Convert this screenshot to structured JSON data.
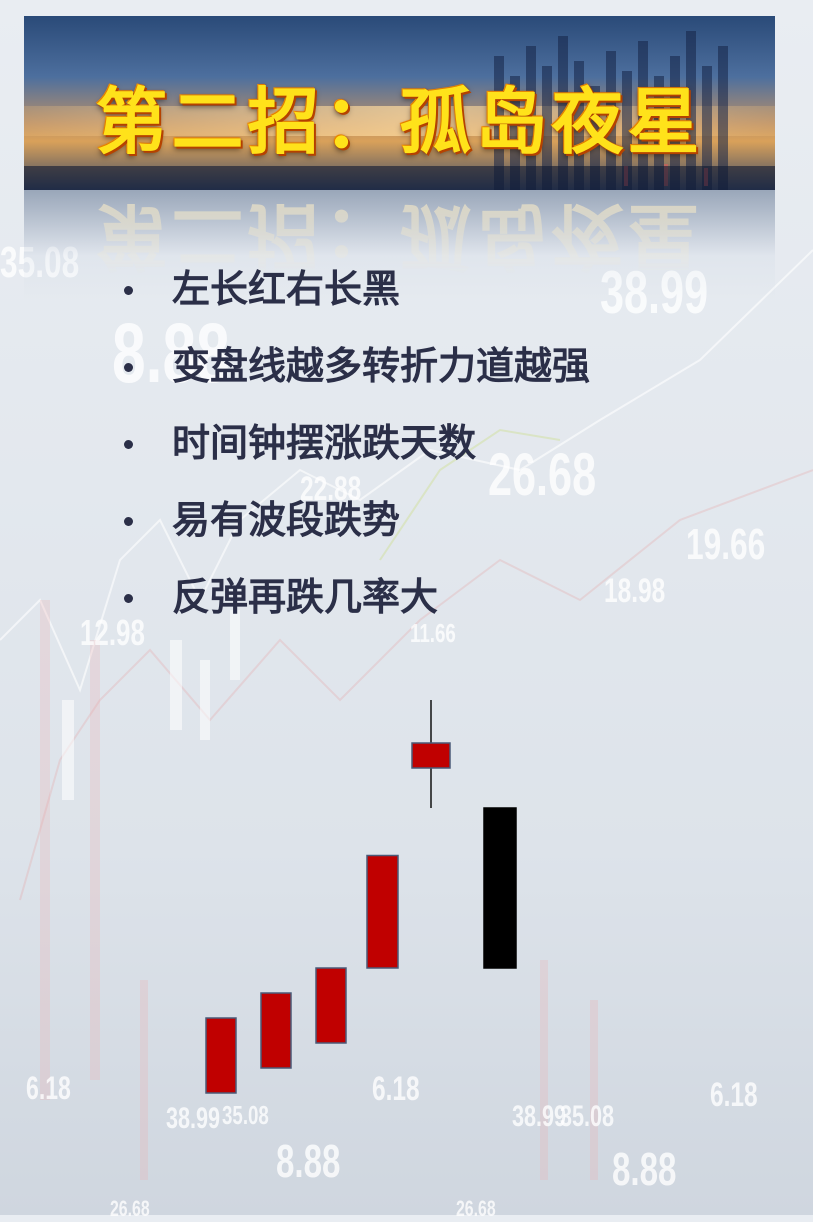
{
  "banner": {
    "title": "第二招：孤岛夜星"
  },
  "bullets": [
    "左长红右长黑",
    "变盘线越多转折力道越强",
    "时间钟摆涨跌天数",
    "易有波段跌势",
    "反弹再跌几率大"
  ],
  "background_numbers": [
    "35.08",
    "8.88",
    "26.68",
    "22.88",
    "38.99",
    "19.66",
    "18.98",
    "12.98",
    "11.66",
    "6.18",
    "38.99",
    "35.08",
    "8.88",
    "6.18",
    "38.99",
    "35.08",
    "8.88",
    "6.18",
    "26.68",
    "26.68"
  ],
  "candlestick_pattern": {
    "candles": [
      {
        "color": "red",
        "open": 1,
        "close": 4
      },
      {
        "color": "red",
        "open": 2,
        "close": 5
      },
      {
        "color": "red",
        "open": 3,
        "close": 6
      },
      {
        "color": "red",
        "open": 6,
        "close": 10.5
      },
      {
        "color": "red",
        "open": 14,
        "close": 15,
        "low": 12.4,
        "high": 17.4,
        "note": "evening star (gap up)"
      },
      {
        "color": "black",
        "open": 12.4,
        "close": 6
      }
    ],
    "colors": {
      "red": "#c00000",
      "black": "#000000",
      "border": "#4a5a78",
      "wick": "#111111"
    }
  }
}
